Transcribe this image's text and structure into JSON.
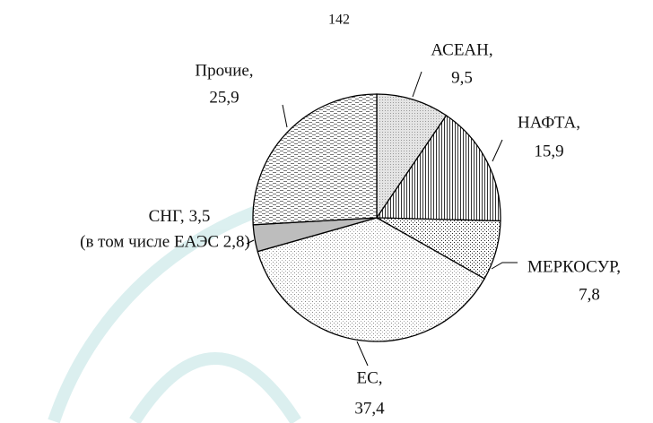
{
  "page_number": "142",
  "chart_data": {
    "type": "pie",
    "categories": [
      "АСЕАН,",
      "НАФТА,",
      "МЕРКОСУР,",
      "ЕС,",
      "СНГ,",
      "Прочие,"
    ],
    "values": [
      9.5,
      15.9,
      7.8,
      37.4,
      3.5,
      25.9
    ],
    "value_labels": [
      "9,5",
      "15,9",
      "7,8",
      "37,4",
      "3,5",
      "25,9"
    ],
    "annotation": "(в том числе ЕАЭС 2,8)",
    "start_angle": 0,
    "direction": "clockwise"
  }
}
